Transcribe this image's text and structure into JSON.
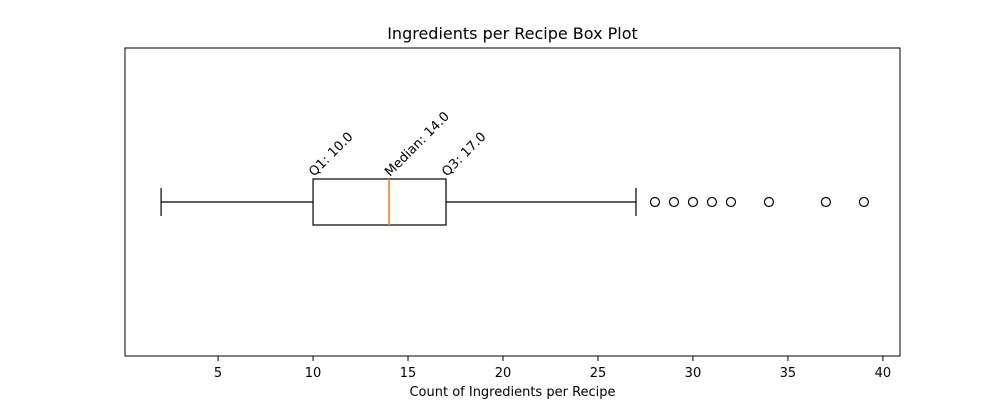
{
  "chart_data": {
    "type": "box",
    "title": "Ingredients per Recipe Box Plot",
    "xlabel": "Count of Ingredients per Recipe",
    "ylabel": "",
    "xlim": [
      0.1,
      40.9
    ],
    "x_ticks": [
      5,
      10,
      15,
      20,
      25,
      30,
      35,
      40
    ],
    "grid": false,
    "orientation": "horizontal",
    "stats": {
      "whisker_low": 2,
      "q1": 10.0,
      "median": 14.0,
      "q3": 17.0,
      "whisker_high": 27
    },
    "outliers": [
      28,
      29,
      30,
      31,
      32,
      34,
      37,
      39
    ],
    "annotations": [
      {
        "id": "q1",
        "text": "Q1: 10.0",
        "x": 10.0
      },
      {
        "id": "median",
        "text": "Median: 14.0",
        "x": 14.0
      },
      {
        "id": "q3",
        "text": "Q3: 17.0",
        "x": 17.0
      }
    ],
    "colors": {
      "box": "#000000",
      "median": "#ff7f0e",
      "outlier": "#000000"
    }
  }
}
